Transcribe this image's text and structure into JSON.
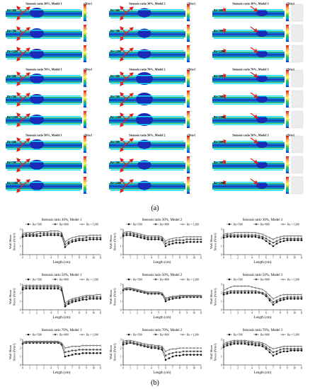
{
  "labels": {
    "panel_a": "(a)",
    "panel_b": "(b)"
  },
  "contour": {
    "colorbar_label": "τ[N/m²]",
    "groups": [
      {
        "title": "Stenosis ratio 30%, Model 1",
        "rows": [
          "Re=500",
          "Re=700",
          "Re=1200"
        ]
      },
      {
        "title": "Stenosis ratio 30%, Model 2",
        "rows": [
          "Re=500",
          "Re=700",
          "Re=1200"
        ]
      },
      {
        "title": "Stenosis ratio 30%, Model 3",
        "rows": [
          "Re=500",
          "Re=700",
          "Re=1200"
        ]
      },
      {
        "title": "Stenosis ratio 70%, Model 1",
        "rows": [
          "Re=500",
          "Re=700",
          "Re=1200"
        ]
      },
      {
        "title": "Stenosis ratio 70%, Model 2",
        "rows": [
          "Re=500",
          "Re=700",
          "Re=1200"
        ]
      },
      {
        "title": "Stenosis ratio 70%, Model 3",
        "rows": [
          "Re=500",
          "Re=700",
          "Re=1200"
        ]
      },
      {
        "title": "Stenosis ratio 50%, Model 1",
        "rows": [
          "Re=500",
          "Re=700",
          "Re=1200"
        ]
      },
      {
        "title": "Stenosis ratio 50%, Model 2",
        "rows": [
          "Re=500",
          "Re=700",
          "Re=1200"
        ]
      },
      {
        "title": "Stenosis ratio 50%, Model 3",
        "rows": [
          "Re=500",
          "Re=700",
          "Re=1200"
        ]
      }
    ]
  },
  "chart_data": [
    {
      "type": "line",
      "title": "Stenosis ratio 30%, Model 1",
      "xlabel": "Length (cm)",
      "ylabel": "Wall Shear Stress (N/m²)",
      "xlim": [
        0,
        11
      ],
      "ylim": [
        0,
        3
      ],
      "x": [
        0,
        0.5,
        1,
        1.5,
        2,
        2.5,
        3,
        3.5,
        4,
        4.5,
        5,
        5.5,
        6,
        6.5,
        7,
        7.5,
        8,
        8.5,
        9,
        9.5,
        10,
        10.5,
        11
      ],
      "series": [
        {
          "name": "Re=500",
          "values": [
            2.1,
            2.2,
            2.2,
            2.2,
            2.2,
            2.2,
            2.3,
            2.3,
            2.3,
            2.3,
            2.3,
            2.2,
            0.9,
            1.3,
            1.5,
            1.6,
            1.7,
            1.7,
            1.7,
            1.8,
            1.8,
            1.8,
            1.8
          ]
        },
        {
          "name": "Re=800",
          "values": [
            2.3,
            2.4,
            2.4,
            2.4,
            2.4,
            2.5,
            2.5,
            2.5,
            2.5,
            2.5,
            2.5,
            2.4,
            1.2,
            1.5,
            1.7,
            1.8,
            1.9,
            1.9,
            2.0,
            2.0,
            2.0,
            2.0,
            2.0
          ]
        },
        {
          "name": "Re = 1200",
          "values": [
            2.5,
            2.6,
            2.6,
            2.6,
            2.7,
            2.7,
            2.7,
            2.7,
            2.8,
            2.8,
            2.8,
            2.6,
            1.5,
            1.8,
            2.0,
            2.1,
            2.2,
            2.2,
            2.2,
            2.3,
            2.3,
            2.3,
            2.3
          ]
        }
      ]
    },
    {
      "type": "line",
      "title": "Stenosis ratio 30%, Model 2",
      "xlabel": "Length (cm)",
      "ylabel": "Wall Shear Stress (N/m²)",
      "xlim": [
        0,
        11
      ],
      "ylim": [
        0,
        3
      ],
      "x": [
        0,
        0.5,
        1,
        1.5,
        2,
        2.5,
        3,
        3.5,
        4,
        4.5,
        5,
        5.5,
        6,
        6.5,
        7,
        7.5,
        8,
        8.5,
        9,
        9.5,
        10,
        10.5,
        11
      ],
      "series": [
        {
          "name": "Re=500",
          "values": [
            2.2,
            2.3,
            2.3,
            2.2,
            2.1,
            2.0,
            1.9,
            1.8,
            1.8,
            1.8,
            1.8,
            1.7,
            1.0,
            1.2,
            1.3,
            1.4,
            1.4,
            1.4,
            1.5,
            1.5,
            1.5,
            1.5,
            1.5
          ]
        },
        {
          "name": "Re=800",
          "values": [
            2.4,
            2.5,
            2.5,
            2.4,
            2.3,
            2.2,
            2.1,
            2.0,
            2.0,
            2.0,
            2.0,
            1.9,
            1.3,
            1.5,
            1.6,
            1.7,
            1.7,
            1.7,
            1.8,
            1.8,
            1.8,
            1.8,
            1.8
          ]
        },
        {
          "name": "Re = 1200",
          "values": [
            2.6,
            2.7,
            2.7,
            2.6,
            2.5,
            2.4,
            2.3,
            2.2,
            2.2,
            2.2,
            2.2,
            2.1,
            1.6,
            1.8,
            1.9,
            2.0,
            2.0,
            2.1,
            2.1,
            2.1,
            2.1,
            2.1,
            2.1
          ]
        }
      ]
    },
    {
      "type": "line",
      "title": "Stenosis ratio 30%, Model 3",
      "xlabel": "Length (cm)",
      "ylabel": "Wall Shear Stress (N/m²)",
      "xlim": [
        0,
        11
      ],
      "ylim": [
        0,
        3
      ],
      "x": [
        0,
        0.5,
        1,
        1.5,
        2,
        2.5,
        3,
        3.5,
        4,
        4.5,
        5,
        5.5,
        6,
        6.5,
        7,
        7.5,
        8,
        8.5,
        9,
        9.5,
        10,
        10.5,
        11
      ],
      "series": [
        {
          "name": "Re=500",
          "values": [
            2.0,
            2.1,
            2.1,
            2.1,
            2.1,
            2.1,
            2.1,
            2.1,
            2.1,
            2.1,
            2.0,
            1.9,
            1.6,
            1.3,
            1.0,
            1.3,
            1.5,
            1.6,
            1.7,
            1.7,
            1.7,
            1.7,
            1.7
          ]
        },
        {
          "name": "Re=800",
          "values": [
            2.2,
            2.3,
            2.3,
            2.3,
            2.3,
            2.3,
            2.3,
            2.3,
            2.3,
            2.3,
            2.2,
            2.1,
            1.9,
            1.6,
            1.4,
            1.6,
            1.8,
            1.9,
            1.9,
            1.9,
            1.9,
            1.9,
            1.9
          ]
        },
        {
          "name": "Re = 1200",
          "values": [
            2.4,
            2.5,
            2.5,
            2.6,
            2.6,
            2.6,
            2.6,
            2.6,
            2.6,
            2.6,
            2.5,
            2.4,
            2.2,
            2.0,
            1.8,
            2.0,
            2.1,
            2.2,
            2.2,
            2.2,
            2.2,
            2.2,
            2.2
          ]
        }
      ]
    },
    {
      "type": "line",
      "title": "Stenosis ratio 50%, Model 1",
      "xlabel": "Length (cm)",
      "ylabel": "Wall Shear Stress (N/m²)",
      "xlim": [
        0,
        11
      ],
      "ylim": [
        0,
        3
      ],
      "x": [
        0,
        0.5,
        1,
        1.5,
        2,
        2.5,
        3,
        3.5,
        4,
        4.5,
        5,
        5.5,
        6,
        6.5,
        7,
        7.5,
        8,
        8.5,
        9,
        9.5,
        10,
        10.5,
        11
      ],
      "series": [
        {
          "name": "Re=500",
          "values": [
            2.4,
            2.5,
            2.5,
            2.5,
            2.5,
            2.5,
            2.5,
            2.5,
            2.5,
            2.5,
            2.5,
            2.3,
            0.4,
            0.7,
            0.9,
            1.0,
            1.1,
            1.2,
            1.2,
            1.3,
            1.3,
            1.3,
            1.3
          ]
        },
        {
          "name": "Re=800",
          "values": [
            2.6,
            2.7,
            2.7,
            2.7,
            2.7,
            2.7,
            2.7,
            2.7,
            2.7,
            2.7,
            2.7,
            2.5,
            0.6,
            0.9,
            1.1,
            1.2,
            1.3,
            1.4,
            1.5,
            1.5,
            1.5,
            1.5,
            1.5
          ]
        },
        {
          "name": "Re = 1200",
          "values": [
            2.8,
            2.9,
            2.9,
            2.9,
            2.9,
            2.9,
            2.9,
            2.9,
            2.9,
            2.9,
            2.9,
            2.7,
            0.8,
            1.1,
            1.3,
            1.4,
            1.5,
            1.6,
            1.7,
            1.7,
            1.7,
            1.8,
            1.8
          ]
        }
      ]
    },
    {
      "type": "line",
      "title": "Stenosis ratio 50%, Model 2",
      "xlabel": "Length (cm)",
      "ylabel": "Wall Shear Stress (N/m²)",
      "xlim": [
        0,
        11
      ],
      "ylim": [
        0,
        3
      ],
      "x": [
        0,
        0.5,
        1,
        1.5,
        2,
        2.5,
        3,
        3.5,
        4,
        4.5,
        5,
        5.5,
        6,
        6.5,
        7,
        7.5,
        8,
        8.5,
        9,
        9.5,
        10,
        10.5,
        11
      ],
      "series": [
        {
          "name": "Re=500",
          "values": [
            2.3,
            2.4,
            2.4,
            2.3,
            2.2,
            2.1,
            2.0,
            1.9,
            1.9,
            1.9,
            1.9,
            1.8,
            1.0,
            1.2,
            1.3,
            1.4,
            1.4,
            1.5,
            1.5,
            1.5,
            1.5,
            1.5,
            1.5
          ]
        },
        {
          "name": "Re=800",
          "values": [
            2.4,
            2.5,
            2.5,
            2.4,
            2.3,
            2.2,
            2.1,
            2.0,
            2.0,
            2.0,
            2.0,
            1.9,
            1.2,
            1.4,
            1.5,
            1.5,
            1.6,
            1.6,
            1.6,
            1.6,
            1.6,
            1.6,
            1.6
          ]
        },
        {
          "name": "Re = 1200",
          "values": [
            2.5,
            2.6,
            2.6,
            2.5,
            2.4,
            2.3,
            2.2,
            2.1,
            2.1,
            2.1,
            2.1,
            2.0,
            1.4,
            1.5,
            1.6,
            1.6,
            1.7,
            1.7,
            1.7,
            1.7,
            1.7,
            1.7,
            1.7
          ]
        }
      ]
    },
    {
      "type": "line",
      "title": "Stenosis ratio 50%, Model 3",
      "xlabel": "Length (cm)",
      "ylabel": "Wall Shear Stress (N/m²)",
      "xlim": [
        0,
        11
      ],
      "ylim": [
        0,
        3
      ],
      "x": [
        0,
        0.5,
        1,
        1.5,
        2,
        2.5,
        3,
        3.5,
        4,
        4.5,
        5,
        5.5,
        6,
        6.5,
        7,
        7.5,
        8,
        8.5,
        9,
        9.5,
        10,
        10.5,
        11
      ],
      "series": [
        {
          "name": "Re=500",
          "values": [
            1.8,
            1.9,
            2.0,
            2.0,
            2.0,
            2.0,
            2.0,
            2.0,
            2.0,
            2.0,
            2.0,
            1.9,
            1.6,
            1.1,
            0.6,
            0.9,
            1.1,
            1.2,
            1.3,
            1.3,
            1.3,
            1.3,
            1.3
          ]
        },
        {
          "name": "Re=800",
          "values": [
            2.0,
            2.1,
            2.2,
            2.2,
            2.2,
            2.2,
            2.2,
            2.2,
            2.2,
            2.2,
            2.1,
            2.0,
            1.8,
            1.3,
            0.9,
            1.1,
            1.3,
            1.4,
            1.5,
            1.5,
            1.5,
            1.5,
            1.5
          ]
        },
        {
          "name": "Re = 1200",
          "values": [
            2.3,
            2.5,
            2.7,
            2.8,
            2.8,
            2.8,
            2.8,
            2.8,
            2.7,
            2.6,
            2.5,
            2.4,
            2.1,
            1.7,
            1.3,
            1.5,
            1.7,
            1.8,
            1.8,
            1.8,
            1.8,
            1.8,
            1.8
          ]
        }
      ]
    },
    {
      "type": "line",
      "title": "Stenosis ratio 70%, Model 1",
      "xlabel": "Length (cm)",
      "ylabel": "Wall Shear Stress (N/m²)",
      "xlim": [
        0,
        11
      ],
      "ylim": [
        0,
        3
      ],
      "x": [
        0,
        0.5,
        1,
        1.5,
        2,
        2.5,
        3,
        3.5,
        4,
        4.5,
        5,
        5.5,
        6,
        6.5,
        7,
        7.5,
        8,
        8.5,
        9,
        9.5,
        10,
        10.5,
        11
      ],
      "series": [
        {
          "name": "Re=500",
          "values": [
            2.5,
            2.6,
            2.6,
            2.6,
            2.6,
            2.6,
            2.6,
            2.6,
            2.6,
            2.6,
            2.6,
            2.4,
            1.0,
            1.1,
            1.2,
            1.3,
            1.3,
            1.4,
            1.4,
            1.4,
            1.4,
            1.4,
            1.4
          ]
        },
        {
          "name": "Re=800",
          "values": [
            2.6,
            2.7,
            2.7,
            2.7,
            2.7,
            2.7,
            2.7,
            2.7,
            2.7,
            2.7,
            2.7,
            2.5,
            1.5,
            1.6,
            1.7,
            1.7,
            1.8,
            1.8,
            1.8,
            1.8,
            1.8,
            1.8,
            1.8
          ]
        },
        {
          "name": "Re = 1200",
          "values": [
            2.7,
            2.8,
            2.8,
            2.8,
            2.8,
            2.8,
            2.8,
            2.8,
            2.8,
            2.8,
            2.8,
            2.6,
            2.0,
            2.1,
            2.2,
            2.2,
            2.2,
            2.3,
            2.3,
            2.3,
            2.3,
            2.3,
            2.3
          ]
        }
      ]
    },
    {
      "type": "line",
      "title": "Stenosis ratio 70%, Model 2",
      "xlabel": "Length (cm)",
      "ylabel": "Wall Shear Stress (N/m²)",
      "xlim": [
        0,
        11
      ],
      "ylim": [
        0,
        3
      ],
      "x": [
        0,
        0.5,
        1,
        1.5,
        2,
        2.5,
        3,
        3.5,
        4,
        4.5,
        5,
        5.5,
        6,
        6.5,
        7,
        7.5,
        8,
        8.5,
        9,
        9.5,
        10,
        10.5,
        11
      ],
      "series": [
        {
          "name": "Re=500",
          "values": [
            2.4,
            2.5,
            2.6,
            2.5,
            2.4,
            2.3,
            2.2,
            2.1,
            2.0,
            2.0,
            1.9,
            1.8,
            0.6,
            0.8,
            1.0,
            1.1,
            1.1,
            1.2,
            1.2,
            1.2,
            1.2,
            1.2,
            1.2
          ]
        },
        {
          "name": "Re=800",
          "values": [
            2.6,
            2.7,
            2.7,
            2.6,
            2.5,
            2.4,
            2.3,
            2.2,
            2.2,
            2.1,
            2.1,
            2.0,
            1.1,
            1.3,
            1.4,
            1.5,
            1.5,
            1.6,
            1.6,
            1.6,
            1.6,
            1.6,
            1.6
          ]
        },
        {
          "name": "Re = 1200",
          "values": [
            2.8,
            2.9,
            2.9,
            2.8,
            2.7,
            2.6,
            2.5,
            2.4,
            2.4,
            2.3,
            2.3,
            2.2,
            1.6,
            1.8,
            1.9,
            1.9,
            2.0,
            2.0,
            2.0,
            2.0,
            2.0,
            2.0,
            2.0
          ]
        }
      ]
    },
    {
      "type": "line",
      "title": "Stenosis ratio 70%, Model 3",
      "xlabel": "Length (cm)",
      "ylabel": "Wall Shear Stress (N/m²)",
      "xlim": [
        0,
        11
      ],
      "ylim": [
        0,
        3
      ],
      "x": [
        0,
        0.5,
        1,
        1.5,
        2,
        2.5,
        3,
        3.5,
        4,
        4.5,
        5,
        5.5,
        6,
        6.5,
        7,
        7.5,
        8,
        8.5,
        9,
        9.5,
        10,
        10.5,
        11
      ],
      "series": [
        {
          "name": "Re=500",
          "values": [
            2.1,
            2.3,
            2.4,
            2.5,
            2.5,
            2.5,
            2.5,
            2.4,
            2.4,
            2.3,
            2.3,
            2.2,
            1.9,
            1.5,
            1.1,
            1.3,
            1.5,
            1.6,
            1.6,
            1.7,
            1.7,
            1.7,
            1.7
          ]
        },
        {
          "name": "Re=800",
          "values": [
            2.3,
            2.5,
            2.6,
            2.7,
            2.7,
            2.7,
            2.7,
            2.6,
            2.6,
            2.5,
            2.5,
            2.4,
            2.1,
            1.8,
            1.5,
            1.6,
            1.8,
            1.9,
            1.9,
            1.9,
            1.9,
            1.9,
            1.9
          ]
        },
        {
          "name": "Re = 1200",
          "values": [
            2.5,
            2.7,
            2.8,
            2.9,
            2.9,
            2.9,
            2.9,
            2.8,
            2.8,
            2.7,
            2.7,
            2.6,
            2.4,
            2.1,
            1.9,
            2.0,
            2.1,
            2.2,
            2.2,
            2.2,
            2.2,
            2.2,
            2.2
          ]
        }
      ]
    }
  ]
}
